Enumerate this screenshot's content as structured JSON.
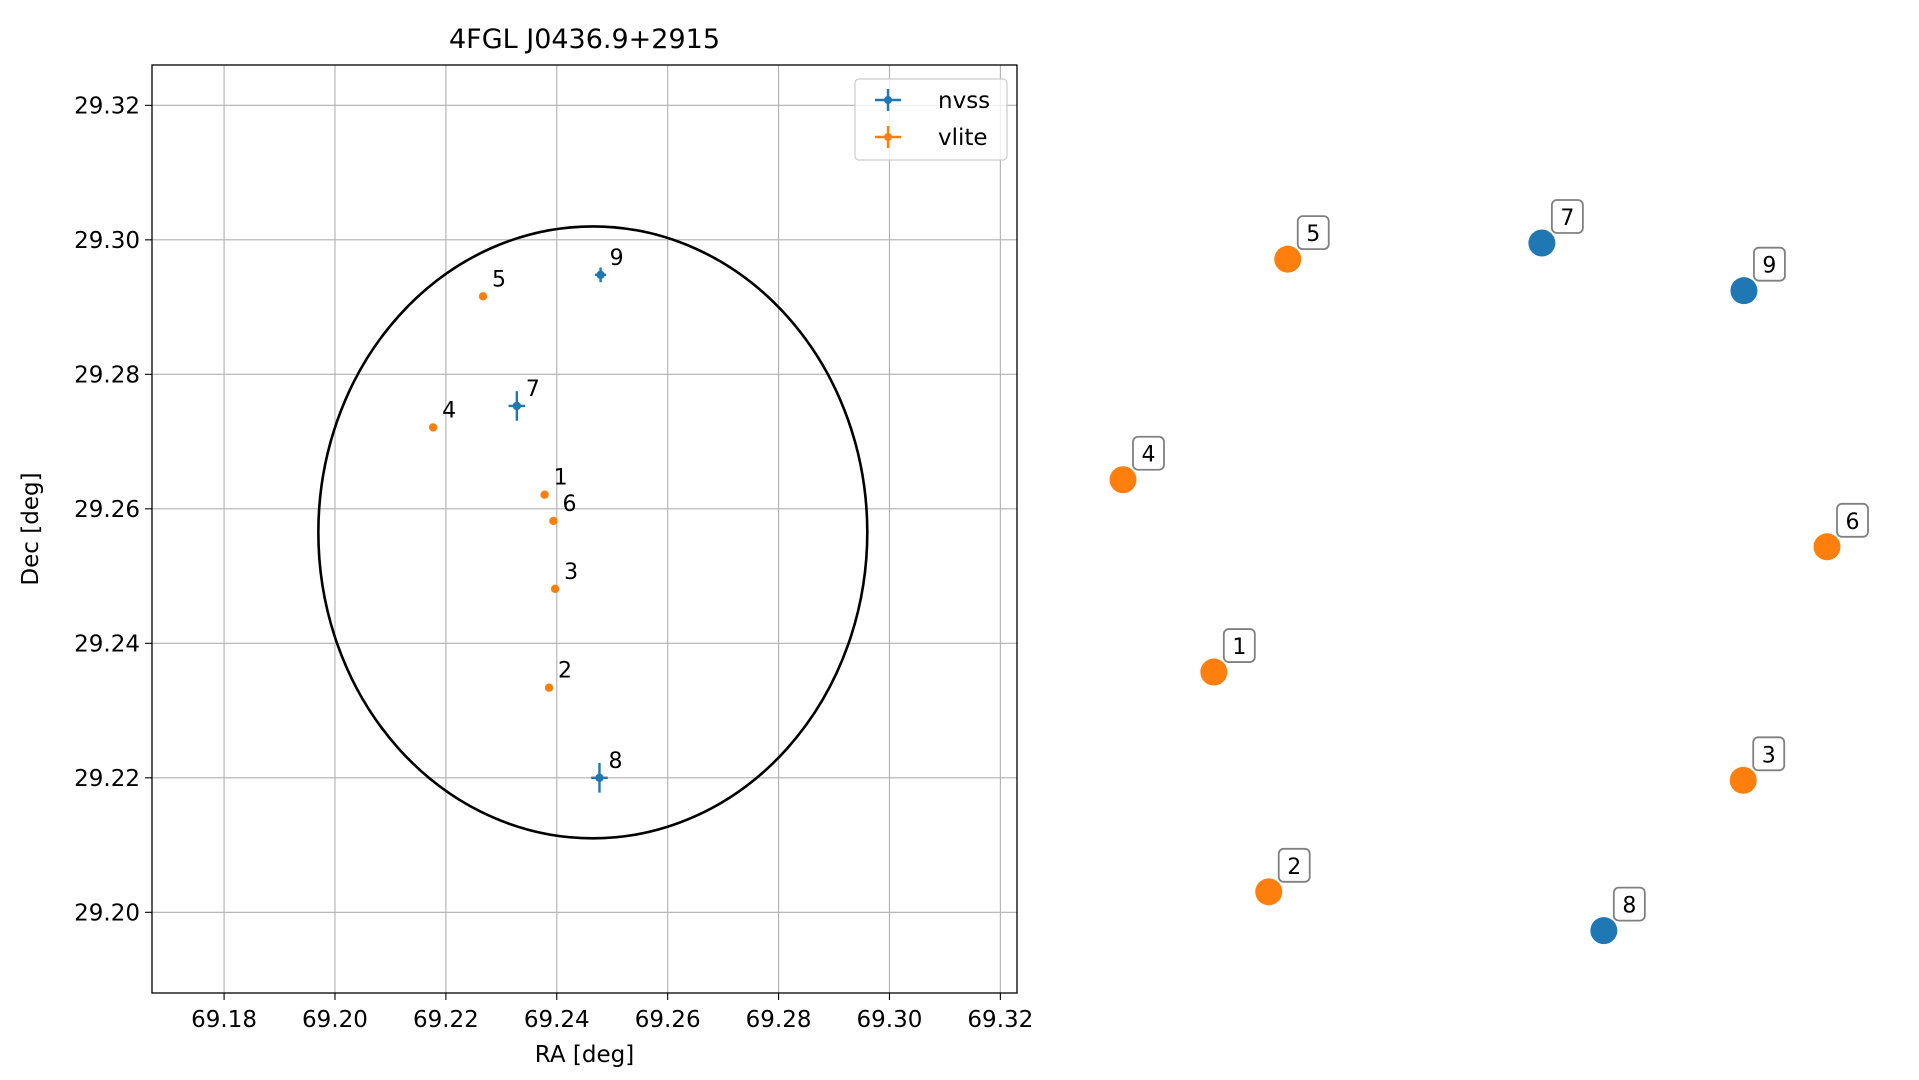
{
  "chart_data": [
    {
      "type": "scatter",
      "title": "4FGL J0436.9+2915",
      "xlabel": "RA [deg]",
      "ylabel": "Dec [deg]",
      "xlim": [
        69.167,
        69.323
      ],
      "ylim": [
        29.188,
        29.326
      ],
      "xticks": [
        69.18,
        69.2,
        69.22,
        69.24,
        69.26,
        69.28,
        69.3,
        69.32
      ],
      "xtick_labels": [
        "69.18",
        "69.20",
        "69.22",
        "69.24",
        "69.26",
        "69.28",
        "69.30",
        "69.32"
      ],
      "yticks": [
        29.2,
        29.22,
        29.24,
        29.26,
        29.28,
        29.3,
        29.32
      ],
      "ytick_labels": [
        "29.20",
        "29.22",
        "29.24",
        "29.26",
        "29.28",
        "29.30",
        "29.32"
      ],
      "grid": true,
      "legend": {
        "placement": "top-right",
        "entries": [
          "nvss",
          "vlite"
        ]
      },
      "ellipse": {
        "center": [
          69.2465,
          29.2565
        ],
        "semi_axis_ra": 0.0495,
        "semi_axis_dec": 0.0455,
        "color": "#000000"
      },
      "series": [
        {
          "name": "nvss",
          "color": "#1f77b4",
          "points": [
            {
              "label": "7",
              "x": 69.2328,
              "y": 29.2753,
              "xerr": 0.0015,
              "yerr": 0.0022
            },
            {
              "label": "8",
              "x": 69.2477,
              "y": 29.22,
              "xerr": 0.0015,
              "yerr": 0.0022
            },
            {
              "label": "9",
              "x": 69.2479,
              "y": 29.2948,
              "xerr": 0.001,
              "yerr": 0.0011
            }
          ]
        },
        {
          "name": "vlite",
          "color": "#ff7f0e",
          "points": [
            {
              "label": "1",
              "x": 69.2378,
              "y": 29.2621
            },
            {
              "label": "2",
              "x": 69.2386,
              "y": 29.2334
            },
            {
              "label": "3",
              "x": 69.2397,
              "y": 29.2481
            },
            {
              "label": "4",
              "x": 69.2177,
              "y": 29.2721
            },
            {
              "label": "5",
              "x": 69.2267,
              "y": 29.2916
            },
            {
              "label": "6",
              "x": 69.2394,
              "y": 29.2582
            }
          ]
        }
      ]
    },
    {
      "type": "scatter",
      "axes_visible": false,
      "series": [
        {
          "name": "nvss",
          "color": "#1f77b4",
          "points": [
            {
              "label": "7",
              "x": 0.595,
              "y": 0.875
            },
            {
              "label": "8",
              "x": 0.683,
              "y": 0.024
            },
            {
              "label": "9",
              "x": 0.882,
              "y": 0.816
            }
          ]
        },
        {
          "name": "vlite",
          "color": "#ff7f0e",
          "points": [
            {
              "label": "1",
              "x": 0.129,
              "y": 0.344
            },
            {
              "label": "2",
              "x": 0.207,
              "y": 0.072
            },
            {
              "label": "3",
              "x": 0.881,
              "y": 0.21
            },
            {
              "label": "4",
              "x": 0.0,
              "y": 0.582
            },
            {
              "label": "5",
              "x": 0.234,
              "y": 0.855
            },
            {
              "label": "6",
              "x": 1.0,
              "y": 0.499
            }
          ]
        }
      ]
    }
  ]
}
